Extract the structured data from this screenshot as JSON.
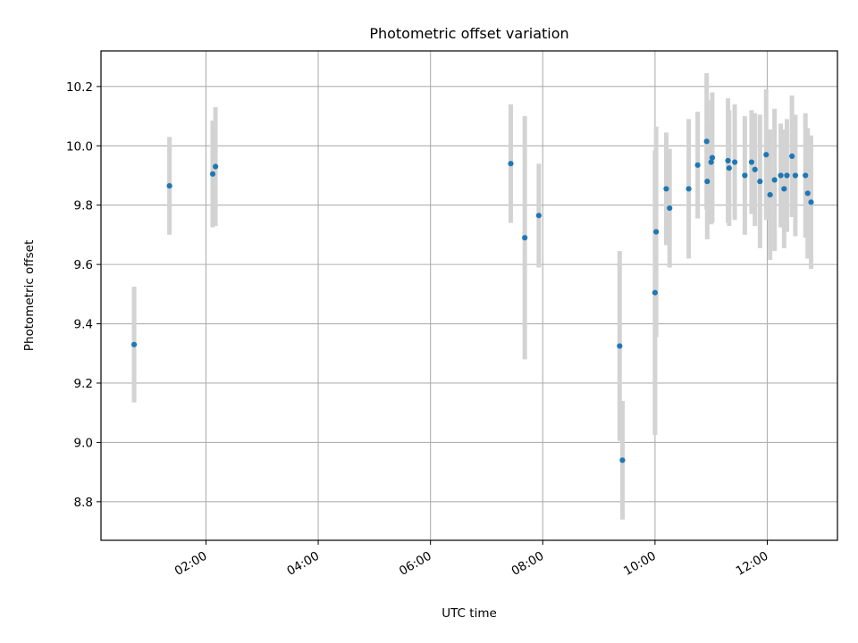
{
  "chart_data": {
    "type": "scatter",
    "title": "Photometric offset variation",
    "xlabel": "UTC time",
    "ylabel": "Photometric offset",
    "x_unit": "hours (UTC)",
    "xlim": [
      0.13,
      13.25
    ],
    "ylim": [
      8.67,
      10.32
    ],
    "grid": true,
    "xticks": [
      {
        "value": 2,
        "label": "02:00"
      },
      {
        "value": 4,
        "label": "04:00"
      },
      {
        "value": 6,
        "label": "06:00"
      },
      {
        "value": 8,
        "label": "08:00"
      },
      {
        "value": 10,
        "label": "10:00"
      },
      {
        "value": 12,
        "label": "12:00"
      }
    ],
    "yticks": [
      {
        "value": 8.8,
        "label": "8.8"
      },
      {
        "value": 9.0,
        "label": "9.0"
      },
      {
        "value": 9.2,
        "label": "9.2"
      },
      {
        "value": 9.4,
        "label": "9.4"
      },
      {
        "value": 9.6,
        "label": "9.6"
      },
      {
        "value": 9.8,
        "label": "9.8"
      },
      {
        "value": 10.0,
        "label": "10.0"
      },
      {
        "value": 10.2,
        "label": "10.2"
      }
    ],
    "colors": {
      "point": "#1f77b4",
      "errorbar": "#d3d3d3",
      "grid": "#b0b0b0"
    },
    "points": [
      {
        "x": 0.72,
        "y": 9.33,
        "err": 0.195
      },
      {
        "x": 1.35,
        "y": 9.865,
        "err": 0.165
      },
      {
        "x": 2.12,
        "y": 9.905,
        "err": 0.18
      },
      {
        "x": 2.17,
        "y": 9.93,
        "err": 0.2
      },
      {
        "x": 7.43,
        "y": 9.94,
        "err": 0.2
      },
      {
        "x": 7.68,
        "y": 9.69,
        "err": 0.41
      },
      {
        "x": 7.93,
        "y": 9.765,
        "err": 0.175
      },
      {
        "x": 9.37,
        "y": 9.325,
        "err": 0.32
      },
      {
        "x": 9.42,
        "y": 8.94,
        "err": 0.2
      },
      {
        "x": 10.0,
        "y": 9.505,
        "err": 0.48
      },
      {
        "x": 10.02,
        "y": 9.71,
        "err": 0.355
      },
      {
        "x": 10.2,
        "y": 9.855,
        "err": 0.19
      },
      {
        "x": 10.26,
        "y": 9.79,
        "err": 0.2
      },
      {
        "x": 10.6,
        "y": 9.855,
        "err": 0.235
      },
      {
        "x": 10.76,
        "y": 9.935,
        "err": 0.18
      },
      {
        "x": 10.92,
        "y": 10.015,
        "err": 0.23
      },
      {
        "x": 10.93,
        "y": 9.88,
        "err": 0.195
      },
      {
        "x": 11.0,
        "y": 9.945,
        "err": 0.21
      },
      {
        "x": 11.02,
        "y": 9.96,
        "err": 0.22
      },
      {
        "x": 11.3,
        "y": 9.95,
        "err": 0.21
      },
      {
        "x": 11.32,
        "y": 9.925,
        "err": 0.195
      },
      {
        "x": 11.42,
        "y": 9.945,
        "err": 0.195
      },
      {
        "x": 11.6,
        "y": 9.9,
        "err": 0.2
      },
      {
        "x": 11.72,
        "y": 9.945,
        "err": 0.175
      },
      {
        "x": 11.78,
        "y": 9.92,
        "err": 0.19
      },
      {
        "x": 11.87,
        "y": 9.88,
        "err": 0.225
      },
      {
        "x": 11.98,
        "y": 9.97,
        "err": 0.22
      },
      {
        "x": 12.05,
        "y": 9.835,
        "err": 0.22
      },
      {
        "x": 12.13,
        "y": 9.885,
        "err": 0.24
      },
      {
        "x": 12.24,
        "y": 9.9,
        "err": 0.175
      },
      {
        "x": 12.3,
        "y": 9.855,
        "err": 0.2
      },
      {
        "x": 12.35,
        "y": 9.9,
        "err": 0.19
      },
      {
        "x": 12.44,
        "y": 9.965,
        "err": 0.205
      },
      {
        "x": 12.5,
        "y": 9.9,
        "err": 0.205
      },
      {
        "x": 12.68,
        "y": 9.9,
        "err": 0.21
      },
      {
        "x": 12.72,
        "y": 9.84,
        "err": 0.22
      },
      {
        "x": 12.78,
        "y": 9.81,
        "err": 0.225
      }
    ]
  }
}
